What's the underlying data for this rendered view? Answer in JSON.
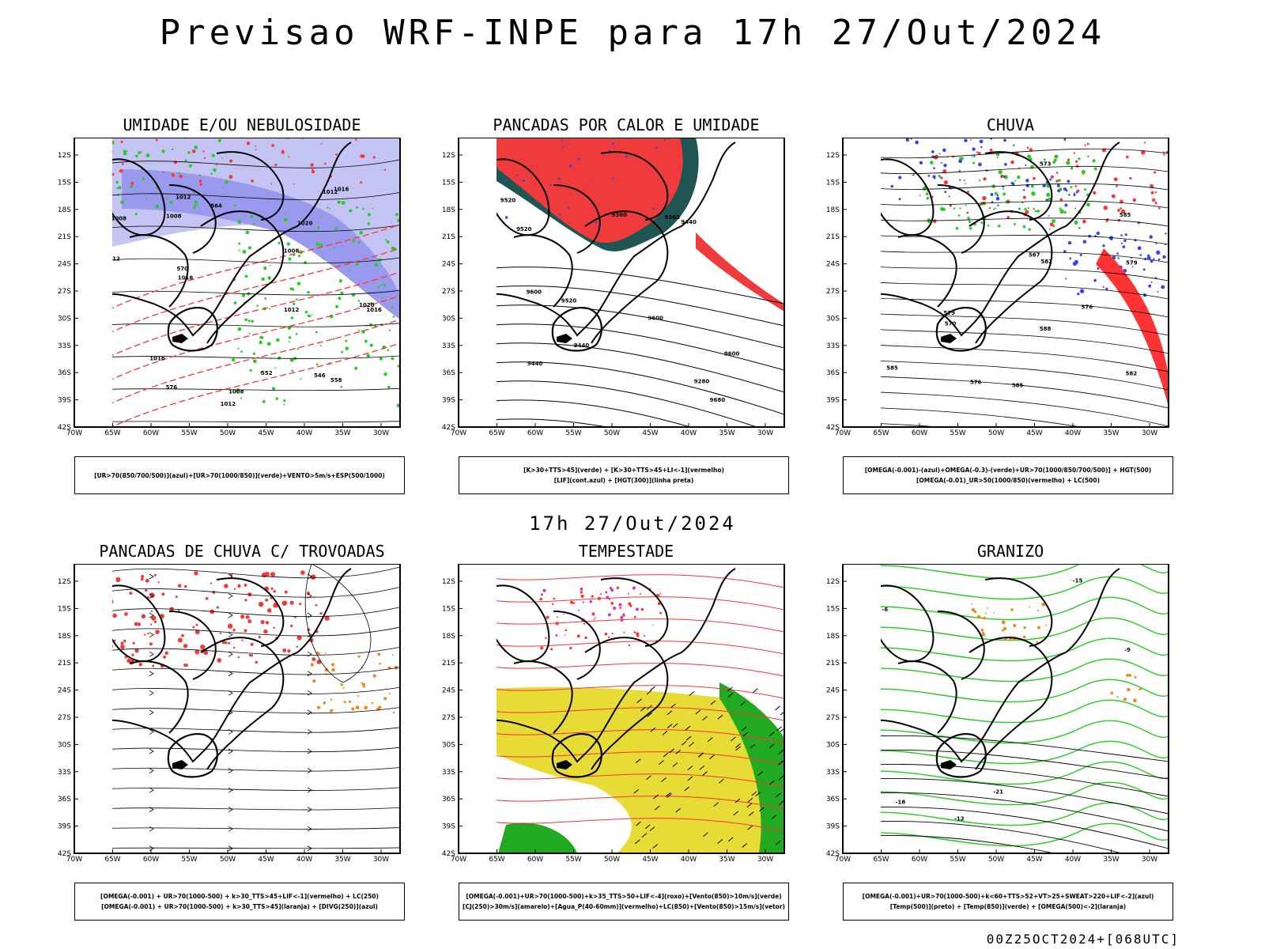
{
  "header": {
    "title": "Previsao WRF-INPE  para 17h 27/Out/2024",
    "subtitle": "17h 27/Out/2024",
    "footer": "00Z25OCT2024+[068UTC]"
  },
  "axes": {
    "lat_labels": [
      "12S",
      "15S",
      "18S",
      "21S",
      "24S",
      "27S",
      "30S",
      "33S",
      "36S",
      "39S",
      "42S"
    ],
    "lon_labels": [
      "70W",
      "65W",
      "60W",
      "55W",
      "50W",
      "45W",
      "40W",
      "35W",
      "30W"
    ]
  },
  "colors": {
    "humidity_upper": "#9999ee",
    "humidity_upper_light": "#c4c4f4",
    "humidity_low": "#22cc22",
    "wind": "#000000",
    "thickness": "#ff3333",
    "heat_red": "#ef3b3b",
    "heat_dark": "#1f5552",
    "lif_blue": "#3344ee",
    "storm_yellow": "#e6dc35",
    "storm_green": "#22aa22",
    "hail_orange": "#ee8822"
  },
  "panels": [
    {
      "title": "UMIDADE E/OU NEBULOSIDADE",
      "legend": [
        "[UR>70(850/700/500)](azul)+[UR>70(1000/850)](verde)+VENTO>5m/s+ESP(500/1000)"
      ],
      "contour_labels": [
        "1008",
        "1008",
        "1008",
        "1008",
        "1012",
        "1012",
        "1012",
        "1016",
        "1016",
        "1016",
        "1020",
        "1012",
        "1020",
        "1016",
        "1012",
        "576",
        "570",
        "564",
        "558",
        "552",
        "546"
      ]
    },
    {
      "title": "PANCADAS POR CALOR E UMIDADE",
      "legend": [
        "[K>30+TTS>45](verde) + [K>30+TTS>45+LI<-1](vermelho)",
        "[LIF](cont.azul) + [HGT(300)](linha preta)"
      ],
      "contour_labels": [
        "9680",
        "9600",
        "9600",
        "9520",
        "9600",
        "9520",
        "9440",
        "9520",
        "9440",
        "9360",
        "9360",
        "9280",
        "9440"
      ]
    },
    {
      "title": "CHUVA",
      "legend": [
        "[OMEGA(-0.001)-(azul)+OMEGA(-0.3)-(verde)+UR>70(1000/850/700/500)] + HGT(500)",
        "[OMEGA(-0.01)_UR>50(1000/850)(vermelho) + LC(500)"
      ],
      "contour_labels": [
        "588",
        "585",
        "585",
        "582",
        "579",
        "576",
        "573",
        "570",
        "567",
        "582",
        "576",
        "579",
        "585"
      ]
    },
    {
      "title": "PANCADAS DE CHUVA C/ TROVOADAS",
      "legend": [
        "[OMEGA(-0.001) + UR>70(1000-500) + k>30_TTS>45+LIF<-1](vermelho) + LC(250)",
        "[OMEGA(-0.001) + UR>70(1000-500) + k>30_TTS>45](laranja) + [DIVG(250)](azul)"
      ],
      "contour_labels": []
    },
    {
      "title": "TEMPESTADE",
      "legend": [
        "[OMEGA(-0.001)+UR>70(1000-500)+k>35_TTS>50+LIF<-4](roxo)+[Vento(850)>10m/s](verde)",
        "[CJ(250)>30m/s](amarelo)+[Agua_P(40-60mm)](vermelho)+LC(850)+[Vento(850)>15m/s](vetor)"
      ],
      "contour_labels": []
    },
    {
      "title": "GRANIZO",
      "legend": [
        "[OMEGA(-0.001)+UR>70(1000-500)+k<60+TTS>52+VT>25+SWEAT>220+LIF<-2](azul)",
        "[Temp(500)](preto) + [Temp(850)](verde) + [OMEGA(500)<-2](laranja)"
      ],
      "contour_labels": [
        "-9",
        "-12",
        "-15",
        "-18",
        "-21",
        "-6"
      ]
    }
  ]
}
